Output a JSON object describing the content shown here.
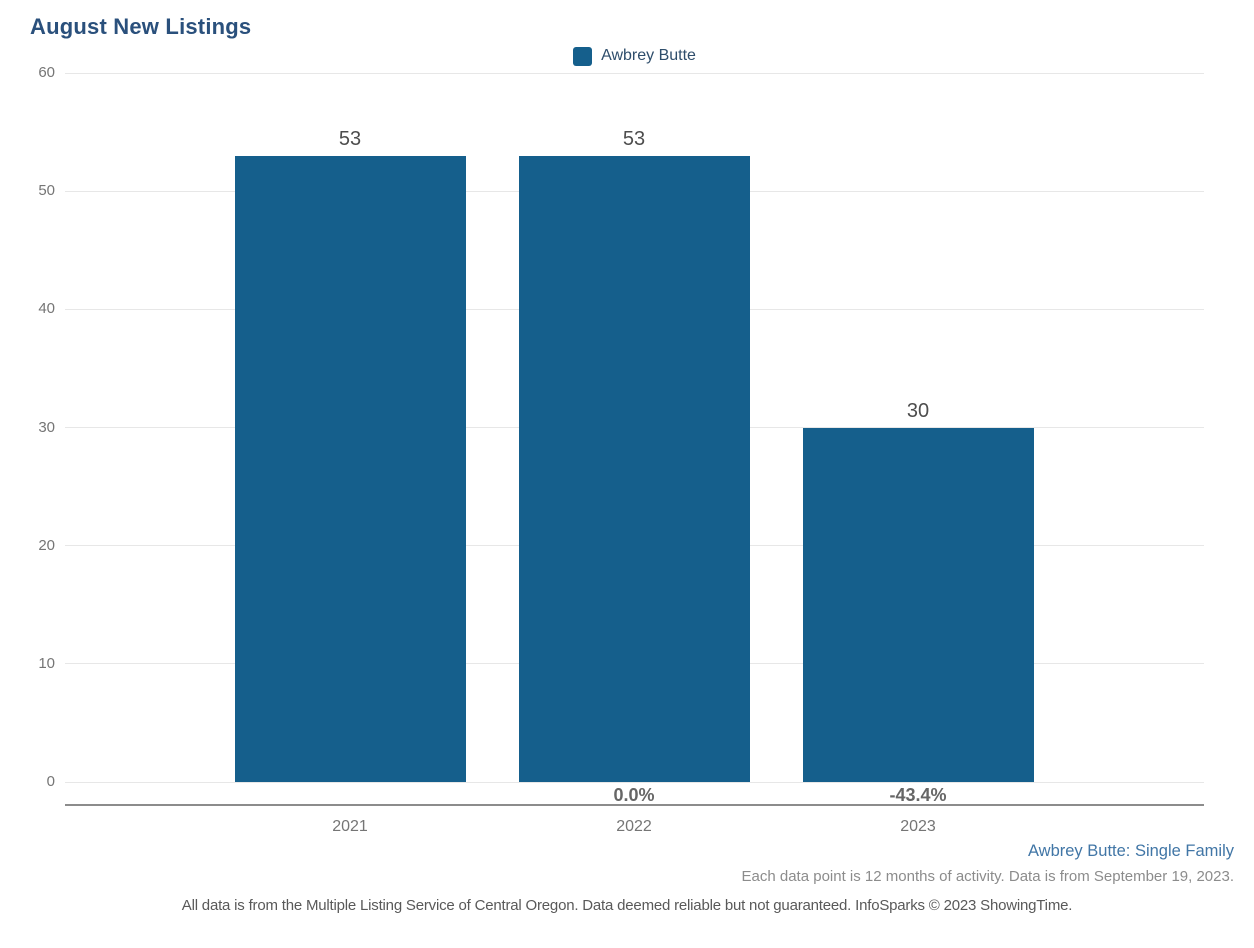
{
  "title": "August New Listings",
  "legend": {
    "label": "Awbrey Butte",
    "swatch_color": "#155f8c"
  },
  "chart_data": {
    "type": "bar",
    "title": "August New Listings",
    "categories": [
      "2021",
      "2022",
      "2023"
    ],
    "series": [
      {
        "name": "Awbrey Butte",
        "values": [
          53,
          53,
          30
        ]
      }
    ],
    "value_labels": [
      "53",
      "53",
      "30"
    ],
    "pct_change_labels": [
      "",
      "0.0%",
      "-43.4%"
    ],
    "xlabel": "",
    "ylabel": "",
    "ylim": [
      0,
      60
    ],
    "yticks": [
      0,
      10,
      20,
      30,
      40,
      50,
      60
    ],
    "grid": true,
    "legend_position": "top-center",
    "bar_color": "#155f8c"
  },
  "footer": {
    "series_context": "Awbrey Butte: Single Family",
    "data_note": "Each data point is 12 months of activity. Data is from September 19, 2023.",
    "disclaimer": "All data is from the Multiple Listing Service of Central Oregon. Data deemed reliable but not guaranteed. InfoSparks © 2023 ShowingTime."
  }
}
